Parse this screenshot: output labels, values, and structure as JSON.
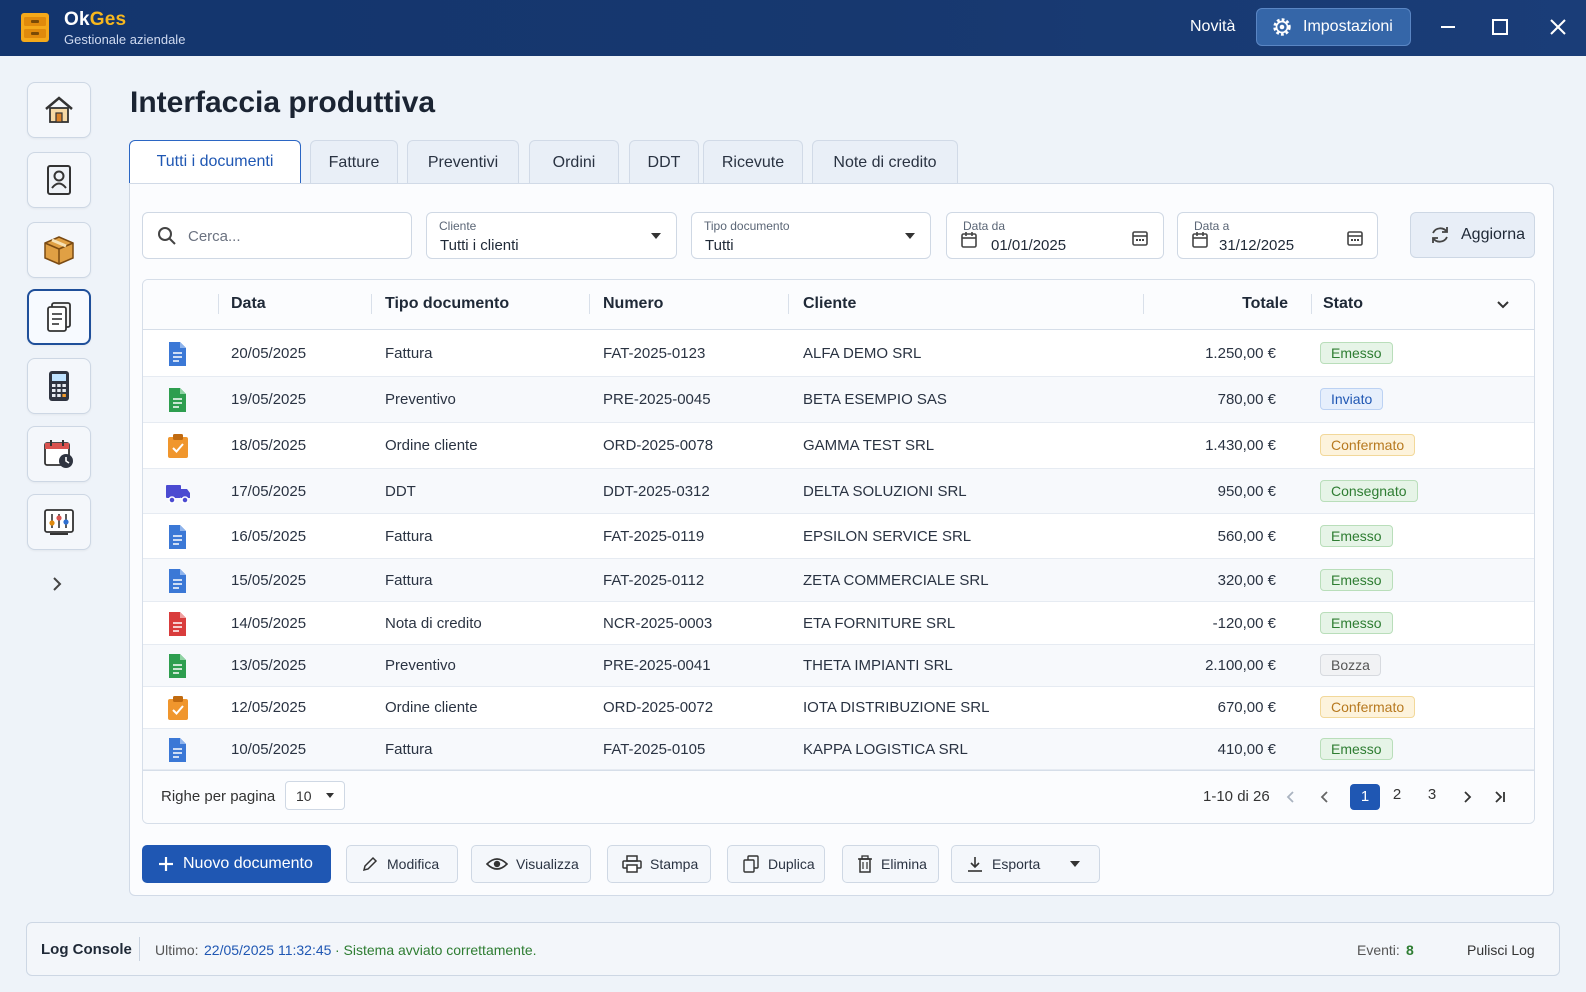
{
  "app": {
    "name_part1": "Ok",
    "name_part2": "Ges",
    "subtitle": "Gestionale aziendale"
  },
  "titlebar": {
    "novita": "Novità",
    "impostazioni": "Impostazioni"
  },
  "sidebar": {
    "items": [
      {
        "name": "home-icon"
      },
      {
        "name": "contacts-icon"
      },
      {
        "name": "package-icon"
      },
      {
        "name": "documents-icon",
        "active": true
      },
      {
        "name": "calculator-icon"
      },
      {
        "name": "calendar-clock-icon"
      },
      {
        "name": "reports-icon"
      }
    ]
  },
  "page": {
    "title": "Interfaccia produttiva"
  },
  "tabs": [
    "Tutti i documenti",
    "Fatture",
    "Preventivi",
    "Ordini",
    "DDT",
    "Ricevute",
    "Note di credito"
  ],
  "filters": {
    "search_placeholder": "Cerca...",
    "cliente_label": "Cliente",
    "cliente_value": "Tutti i clienti",
    "tipo_label": "Tipo documento",
    "tipo_value": "Tutti",
    "data_da_label": "Data da",
    "data_da_value": "01/01/2025",
    "data_a_label": "Data a",
    "data_a_value": "31/12/2025",
    "aggiorna": "Aggiorna"
  },
  "table": {
    "headers": {
      "data": "Data",
      "tipo": "Tipo documento",
      "numero": "Numero",
      "cliente": "Cliente",
      "totale": "Totale",
      "stato": "Stato"
    },
    "rows": [
      {
        "icon": "invoice-icon",
        "data": "20/05/2025",
        "tipo": "Fattura",
        "numero": "FAT-2025-0123",
        "cliente": "ALFA DEMO SRL",
        "totale": "1.250,00 €",
        "stato": "Emesso",
        "status": "green"
      },
      {
        "icon": "quote-icon",
        "data": "19/05/2025",
        "tipo": "Preventivo",
        "numero": "PRE-2025-0045",
        "cliente": "BETA ESEMPIO SAS",
        "totale": "780,00 €",
        "stato": "Inviato",
        "status": "blue"
      },
      {
        "icon": "order-icon",
        "data": "18/05/2025",
        "tipo": "Ordine cliente",
        "numero": "ORD-2025-0078",
        "cliente": "GAMMA TEST SRL",
        "totale": "1.430,00 €",
        "stato": "Confermato",
        "status": "yellow"
      },
      {
        "icon": "truck-icon",
        "data": "17/05/2025",
        "tipo": "DDT",
        "numero": "DDT-2025-0312",
        "cliente": "DELTA SOLUZIONI SRL",
        "totale": "950,00 €",
        "stato": "Consegnato",
        "status": "green"
      },
      {
        "icon": "invoice-icon",
        "data": "16/05/2025",
        "tipo": "Fattura",
        "numero": "FAT-2025-0119",
        "cliente": "EPSILON SERVICE SRL",
        "totale": "560,00 €",
        "stato": "Emesso",
        "status": "green"
      },
      {
        "icon": "invoice-icon",
        "data": "15/05/2025",
        "tipo": "Fattura",
        "numero": "FAT-2025-0112",
        "cliente": "ZETA COMMERCIALE SRL",
        "totale": "320,00 €",
        "stato": "Emesso",
        "status": "green"
      },
      {
        "icon": "credit-note-icon",
        "data": "14/05/2025",
        "tipo": "Nota di credito",
        "numero": "NCR-2025-0003",
        "cliente": "ETA FORNITURE SRL",
        "totale": "-120,00 €",
        "stato": "Emesso",
        "status": "green"
      },
      {
        "icon": "quote-icon",
        "data": "13/05/2025",
        "tipo": "Preventivo",
        "numero": "PRE-2025-0041",
        "cliente": "THETA IMPIANTI SRL",
        "totale": "2.100,00 €",
        "stato": "Bozza",
        "status": "gray"
      },
      {
        "icon": "order-icon",
        "data": "12/05/2025",
        "tipo": "Ordine cliente",
        "numero": "ORD-2025-0072",
        "cliente": "IOTA DISTRIBUZIONE SRL",
        "totale": "670,00 €",
        "stato": "Confermato",
        "status": "yellow"
      },
      {
        "icon": "invoice-icon",
        "data": "10/05/2025",
        "tipo": "Fattura",
        "numero": "FAT-2025-0105",
        "cliente": "KAPPA LOGISTICA SRL",
        "totale": "410,00 €",
        "stato": "Emesso",
        "status": "green"
      }
    ],
    "footer": {
      "rows_label": "Righe per pagina",
      "rows_value": "10",
      "range": "1-10 di 26",
      "pages": [
        "1",
        "2",
        "3"
      ],
      "current_page": "1"
    }
  },
  "actions": {
    "nuovo": "Nuovo documento",
    "modifica": "Modifica",
    "visualizza": "Visualizza",
    "stampa": "Stampa",
    "duplica": "Duplica",
    "elimina": "Elimina",
    "esporta": "Esporta"
  },
  "log": {
    "title": "Log Console",
    "last_label": "Ultimo:",
    "last_time": "22/05/2025 11:32:45",
    "message": "· Sistema avviato correttamente.",
    "events_label": "Eventi:",
    "events_count": "8",
    "clear": "Pulisci Log"
  },
  "colors": {
    "accent": "#1f57b3",
    "titlebar": "#17386f",
    "brand_yellow": "#f7b71e",
    "status_green": "#2e7d32",
    "status_blue": "#1f57b3",
    "status_yellow": "#b7791f",
    "status_gray": "#555555"
  }
}
